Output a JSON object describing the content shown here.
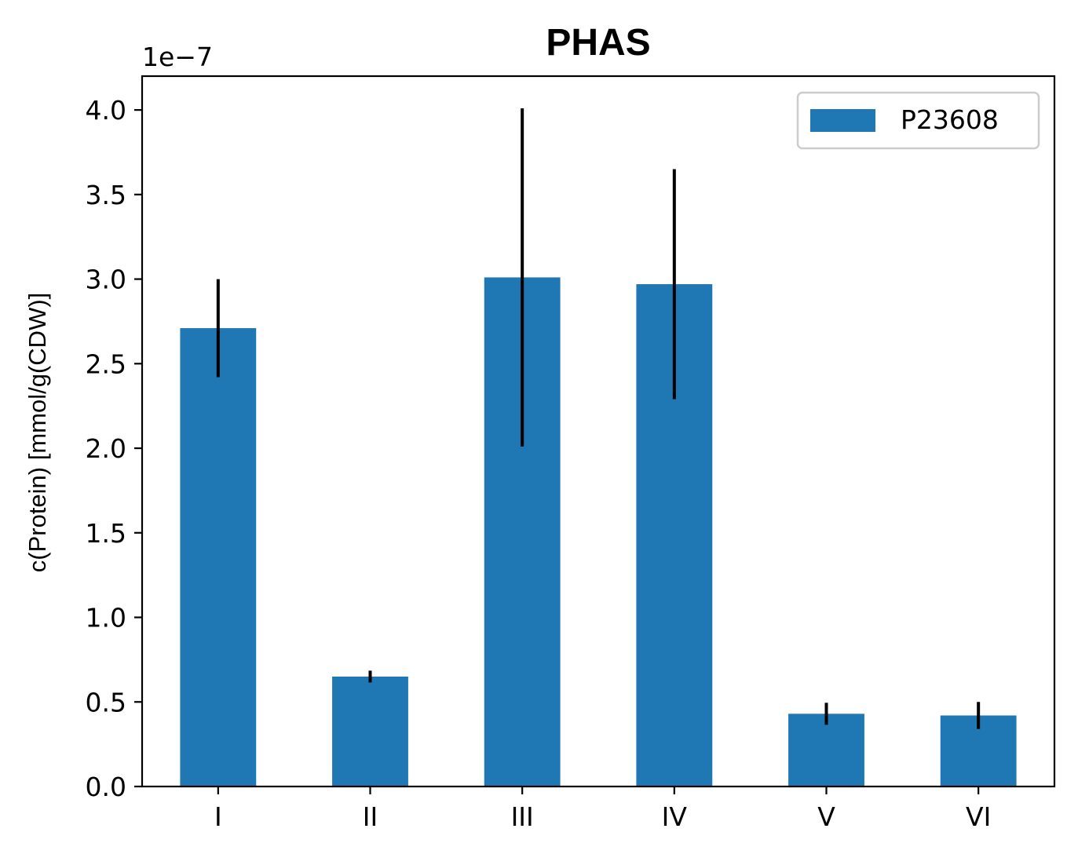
{
  "chart_data": {
    "type": "bar",
    "title": "PHAS",
    "xlabel": "",
    "ylabel": "c(Protein) [mmol/g(CDW)]",
    "y_offset_label": "1e−7",
    "y_scale": 1e-07,
    "categories": [
      "I",
      "II",
      "III",
      "IV",
      "V",
      "VI"
    ],
    "series": [
      {
        "name": "P23608",
        "color": "#1f77b4",
        "values": [
          2.71e-07,
          6.5e-08,
          3.01e-07,
          2.97e-07,
          4.3e-08,
          4.2e-08
        ],
        "error": [
          2.9e-08,
          3.5e-09,
          1e-07,
          6.8e-08,
          6.5e-09,
          8e-09
        ]
      }
    ],
    "ylim": [
      0,
      4.2e-07
    ],
    "yticks": [
      0.0,
      0.5,
      1.0,
      1.5,
      2.0,
      2.5,
      3.0,
      3.5,
      4.0
    ],
    "ytick_labels": [
      "0.0",
      "0.5",
      "1.0",
      "1.5",
      "2.0",
      "2.5",
      "3.0",
      "3.5",
      "4.0"
    ],
    "grid": false,
    "legend_position": "top-right",
    "error_bar_color": "#000000"
  }
}
